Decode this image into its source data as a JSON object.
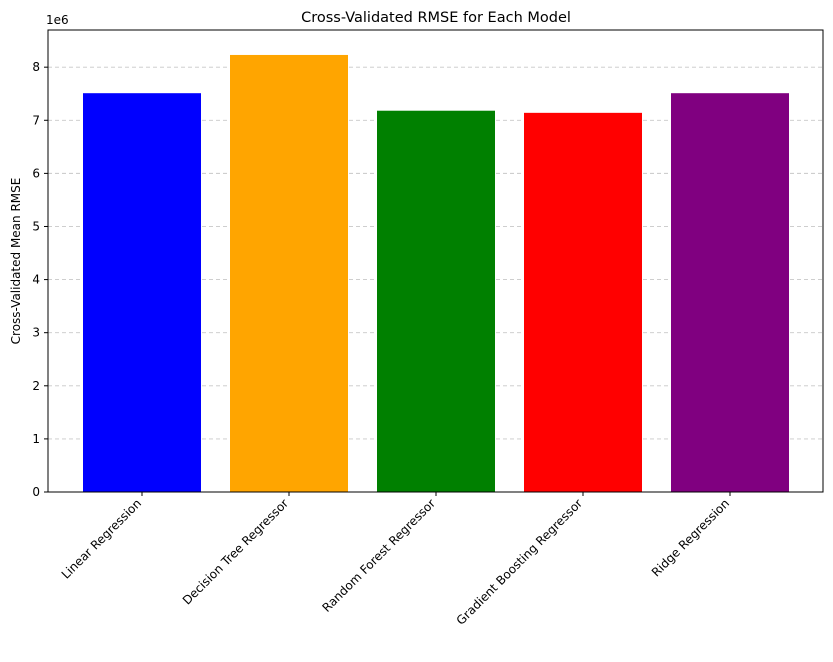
{
  "chart_data": {
    "type": "bar",
    "title": "Cross-Validated RMSE for Each Model",
    "xlabel": "",
    "ylabel": "Cross-Validated Mean RMSE",
    "y_offset_label": "1e6",
    "y_scale_factor": 1000000,
    "ylim": [
      0,
      8700000
    ],
    "y_ticks": [
      0,
      1,
      2,
      3,
      4,
      5,
      6,
      7,
      8
    ],
    "grid": "y-dashed",
    "categories": [
      "Linear Regression",
      "Decision Tree Regressor",
      "Random Forest Regressor",
      "Gradient Boosting Regressor",
      "Ridge Regression"
    ],
    "values": [
      7510000,
      8230000,
      7180000,
      7140000,
      7510000
    ],
    "colors": [
      "#0000ff",
      "#ffa500",
      "#008000",
      "#ff0000",
      "#800080"
    ]
  }
}
